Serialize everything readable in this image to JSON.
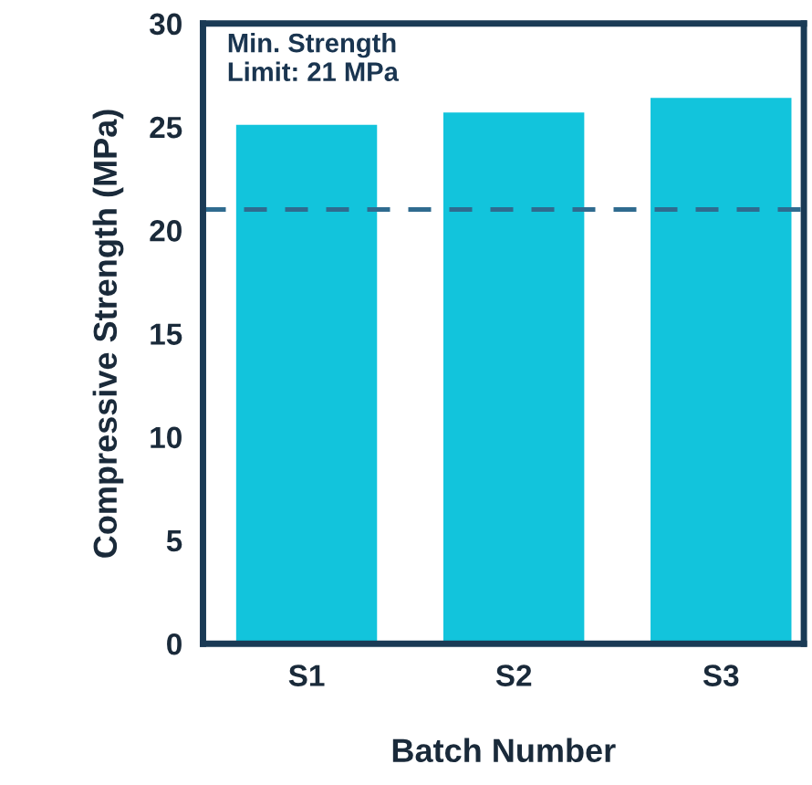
{
  "chart_data": {
    "type": "bar",
    "xlabel": "Batch Number",
    "ylabel": "Compressive Strength (MPa)",
    "categories": [
      "S1",
      "S2",
      "S3"
    ],
    "series": [
      {
        "color": "#12c4dc",
        "values": [
          25.1,
          25.7,
          26.4
        ]
      }
    ],
    "ylim": [
      0,
      30
    ],
    "yticks": [
      0,
      5,
      10,
      15,
      20,
      25,
      30
    ],
    "grid": false,
    "legend": false,
    "annotations": [
      "Min. Strength\nLimit: 21 MPa"
    ],
    "ref_lines": [
      {
        "axis": "y",
        "value": 21,
        "color": "#2f6b8f",
        "line_style": "dashed"
      }
    ]
  }
}
